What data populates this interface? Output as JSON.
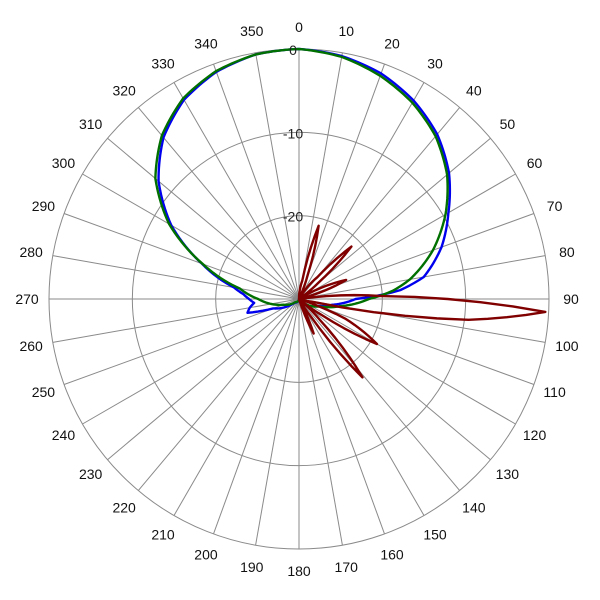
{
  "chart_data": {
    "type": "polar-line",
    "angle_unit": "degrees",
    "angle_direction": "clockwise",
    "angle_zero": "top",
    "angle_ticks": [
      0,
      10,
      20,
      30,
      40,
      50,
      60,
      70,
      80,
      90,
      100,
      110,
      120,
      130,
      140,
      150,
      160,
      170,
      180,
      190,
      200,
      210,
      220,
      230,
      240,
      250,
      260,
      270,
      280,
      290,
      300,
      310,
      320,
      330,
      340,
      350
    ],
    "angle_tick_labels": [
      "0",
      "10",
      "20",
      "30",
      "40",
      "50",
      "60",
      "70",
      "80",
      "90",
      "100",
      "110",
      "120",
      "130",
      "140",
      "150",
      "160",
      "170",
      "180",
      "190",
      "200",
      "210",
      "220",
      "230",
      "240",
      "250",
      "260",
      "270",
      "280",
      "290",
      "300",
      "310",
      "320",
      "330",
      "340",
      "350"
    ],
    "radial_range": [
      -30,
      0
    ],
    "radial_rings": [
      -30,
      -20,
      -10,
      0
    ],
    "radial_tick_labels": [
      "0",
      "-10",
      "-20"
    ],
    "grid": true,
    "series": [
      {
        "color": "#0000ee",
        "points": [
          [
            0,
            0
          ],
          [
            10,
            -0.4
          ],
          [
            20,
            -1.2
          ],
          [
            30,
            -2.5
          ],
          [
            40,
            -4.2
          ],
          [
            50,
            -6.5
          ],
          [
            60,
            -9.3
          ],
          [
            70,
            -11.8
          ],
          [
            80,
            -14.8
          ],
          [
            85,
            -17.8
          ],
          [
            90,
            -23.2
          ],
          [
            100,
            -26.0
          ],
          [
            110,
            -27.6
          ],
          [
            130,
            -28.9
          ],
          [
            180,
            -30
          ],
          [
            230,
            -29.3
          ],
          [
            250,
            -26.7
          ],
          [
            255,
            -23.6
          ],
          [
            260,
            -24.0
          ],
          [
            265,
            -24.6
          ],
          [
            270,
            -24.0
          ],
          [
            275,
            -23.3
          ],
          [
            280,
            -22.1
          ],
          [
            290,
            -17.6
          ],
          [
            300,
            -12.3
          ],
          [
            310,
            -8.0
          ],
          [
            320,
            -4.7
          ],
          [
            330,
            -2.4
          ],
          [
            340,
            -1.0
          ],
          [
            350,
            -0.2
          ],
          [
            360,
            0
          ]
        ]
      },
      {
        "color": "#007000",
        "points": [
          [
            0,
            0
          ],
          [
            10,
            -0.5
          ],
          [
            20,
            -1.5
          ],
          [
            30,
            -2.8
          ],
          [
            40,
            -4.5
          ],
          [
            50,
            -6.8
          ],
          [
            60,
            -9.7
          ],
          [
            70,
            -12.9
          ],
          [
            80,
            -16.5
          ],
          [
            85,
            -18.7
          ],
          [
            90,
            -21.6
          ],
          [
            100,
            -25.0
          ],
          [
            110,
            -27.4
          ],
          [
            130,
            -29.2
          ],
          [
            180,
            -30
          ],
          [
            230,
            -29.4
          ],
          [
            250,
            -28.0
          ],
          [
            260,
            -26.6
          ],
          [
            270,
            -25.1
          ],
          [
            280,
            -22.8
          ],
          [
            290,
            -17.7
          ],
          [
            300,
            -12.0
          ],
          [
            310,
            -7.5
          ],
          [
            320,
            -4.4
          ],
          [
            330,
            -2.2
          ],
          [
            340,
            -0.9
          ],
          [
            350,
            -0.2
          ],
          [
            360,
            0
          ]
        ]
      },
      {
        "color": "#800000",
        "points": [
          [
            0,
            -30
          ],
          [
            10,
            -27.8
          ],
          [
            15,
            -20.9
          ],
          [
            20,
            -27.0
          ],
          [
            25,
            -30
          ],
          [
            30,
            -30
          ],
          [
            40,
            -26.6
          ],
          [
            45,
            -21.1
          ],
          [
            50,
            -26.9
          ],
          [
            55,
            -30
          ],
          [
            60,
            -29.0
          ],
          [
            68,
            -23.9
          ],
          [
            75,
            -29.0
          ],
          [
            82,
            -30
          ],
          [
            88,
            -20.0
          ],
          [
            93,
            -0.4
          ],
          [
            97,
            -9.5
          ],
          [
            102,
            -28.5
          ],
          [
            108,
            -30
          ],
          [
            113,
            -24.0
          ],
          [
            120,
            -19.2
          ],
          [
            125,
            -26.5
          ],
          [
            130,
            -30
          ],
          [
            135,
            -26.5
          ],
          [
            141,
            -17.9
          ],
          [
            146,
            -27.5
          ],
          [
            150,
            -30
          ],
          [
            152,
            -30
          ],
          [
            157,
            -25.5
          ],
          [
            162,
            -29.7
          ],
          [
            170,
            -30
          ],
          [
            360,
            -30
          ]
        ]
      }
    ]
  }
}
